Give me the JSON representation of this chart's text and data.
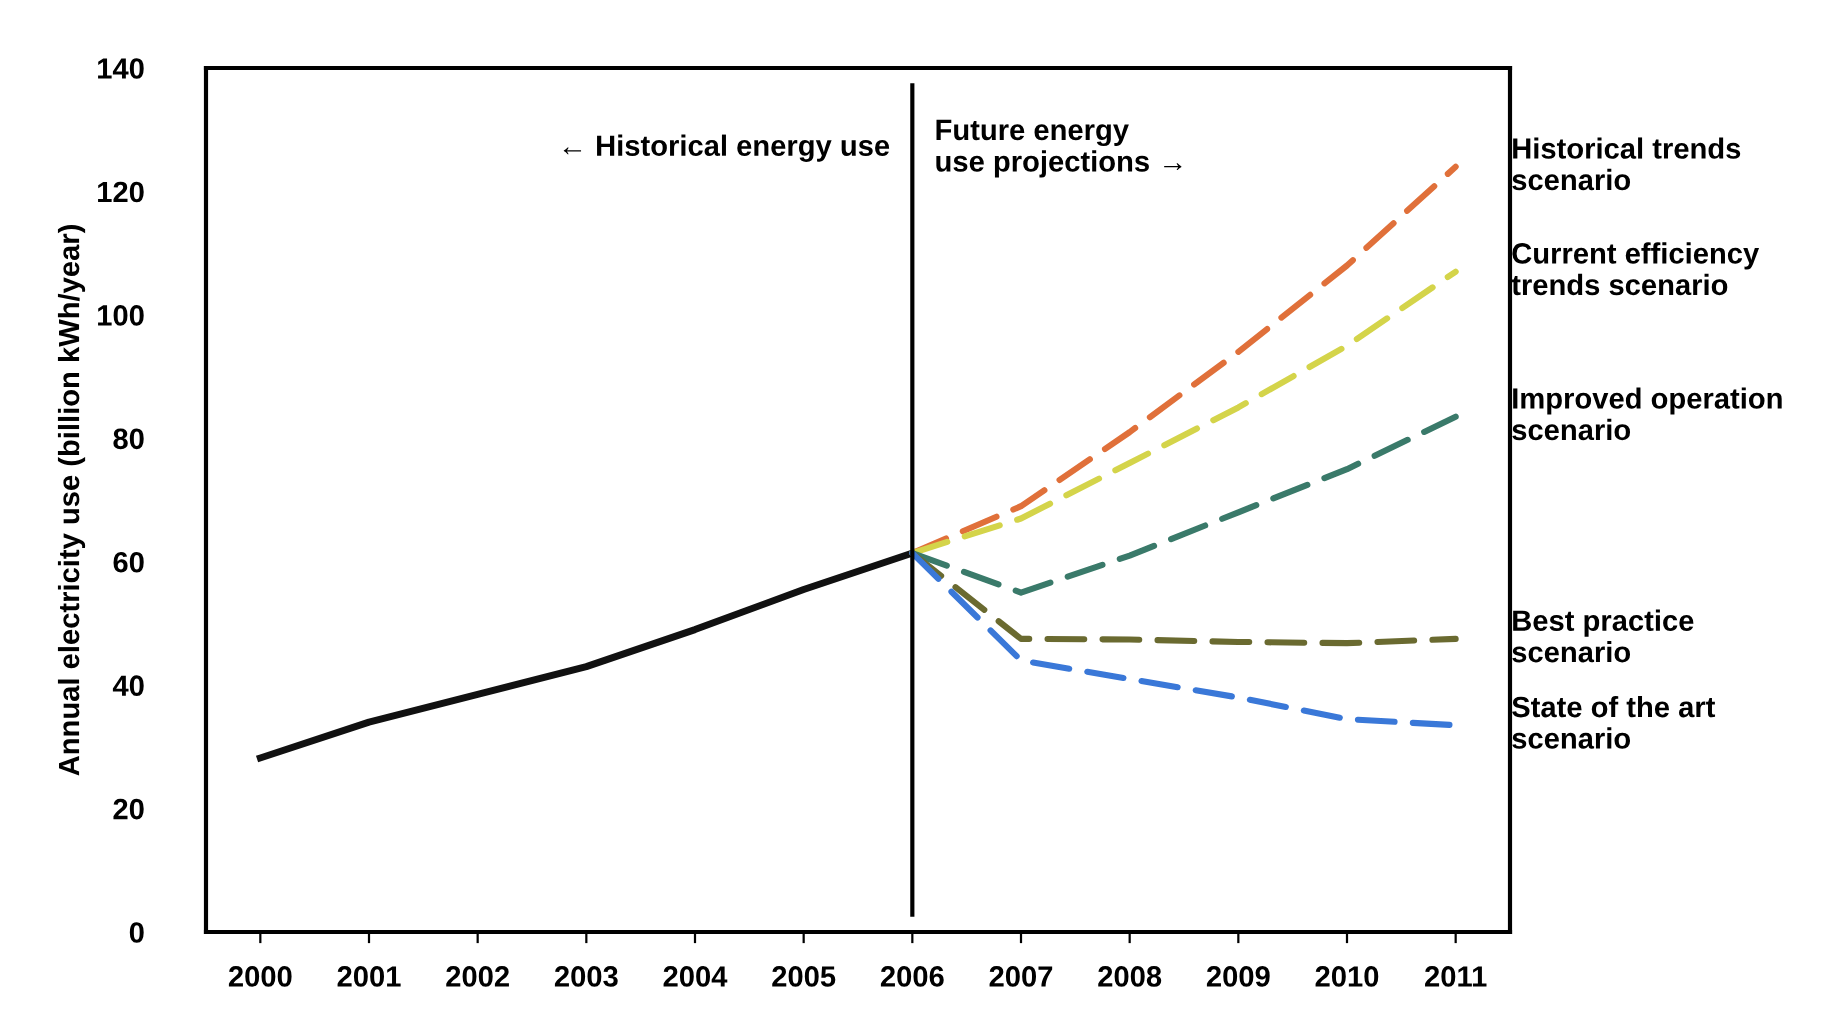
{
  "chart_data": {
    "type": "line",
    "ylabel": "Annual electricity use (billion kWh/year)",
    "xlim": [
      1999.5,
      2011.5
    ],
    "xticks": [
      2000,
      2001,
      2002,
      2003,
      2004,
      2005,
      2006,
      2007,
      2008,
      2009,
      2010,
      2011
    ],
    "ylim": [
      0,
      140
    ],
    "yticks": [
      0,
      20,
      40,
      60,
      80,
      100,
      120,
      140
    ],
    "grid": false,
    "legend": false,
    "series": [
      {
        "color": "#111111",
        "line_style": "solid",
        "x": [
          2000,
          2001,
          2002,
          2003,
          2004,
          2005,
          2006
        ],
        "values": [
          28.2,
          34,
          38.5,
          43,
          49,
          55.5,
          61.4
        ]
      },
      {
        "name": "Historical trends scenario",
        "color": "#e0703a",
        "line_style": "dashed",
        "x": [
          2006,
          2007,
          2008,
          2009,
          2010,
          2011
        ],
        "values": [
          61.4,
          69,
          81,
          94,
          108,
          124
        ]
      },
      {
        "name": "Current efficiency trends scenario",
        "color": "#d4d44a",
        "line_style": "dashed",
        "x": [
          2006,
          2007,
          2008,
          2009,
          2010,
          2011
        ],
        "values": [
          61.4,
          67,
          76,
          85,
          95,
          107
        ]
      },
      {
        "name": "Improved operation scenario",
        "color": "#3a7a6a",
        "line_style": "dashed",
        "x": [
          2006,
          2007,
          2008,
          2009,
          2010,
          2011
        ],
        "values": [
          61.4,
          55,
          61,
          68,
          75,
          83.5
        ]
      },
      {
        "name": "Best practice scenario",
        "color": "#6a6a30",
        "line_style": "dashed",
        "x": [
          2006,
          2007,
          2008,
          2009,
          2010,
          2011
        ],
        "values": [
          61.4,
          47.5,
          47.4,
          47,
          46.8,
          47.5
        ]
      },
      {
        "name": "State of the art scenario",
        "color": "#3a78d8",
        "line_style": "dashed",
        "x": [
          2006,
          2007,
          2008,
          2009,
          2010,
          2011
        ],
        "values": [
          61.4,
          44,
          41,
          38,
          34.5,
          33.5
        ]
      }
    ],
    "ref_lines": [
      {
        "axis": "x",
        "value": 2006,
        "color": "#000000",
        "line_style": "solid"
      }
    ],
    "annotations": [
      {
        "text": "← Historical energy use",
        "x": 2006,
        "y": 127
      },
      {
        "text": "Future energy\nuse projections →",
        "x": 2006,
        "y": 127
      }
    ]
  }
}
